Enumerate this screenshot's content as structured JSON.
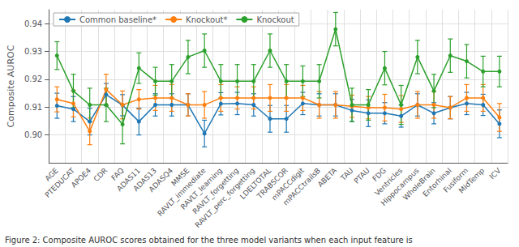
{
  "chart_data": {
    "type": "line",
    "categories": [
      "AGE",
      "PTEDUCAT",
      "APOE4",
      "CDR",
      "FAQ",
      "ADAS11",
      "ADAS13",
      "ADASQ4",
      "MMSE",
      "RAVLT_immediate",
      "RAVLT_learning",
      "RAVLT_forgetting",
      "RAVLT_perc_forgetting",
      "LDELTOTAL",
      "TRABSCOR",
      "mPACCdigit",
      "mPACCtrailsB",
      "ABETA",
      "TAU",
      "PTAU",
      "FDG",
      "Ventricles",
      "Hippocampus",
      "WholeBrain",
      "Entorhinal",
      "Fusiform",
      "MidTemp",
      "ICV"
    ],
    "series": [
      {
        "name": "Common baseline*",
        "color": "#1f77b4",
        "marker": "circle",
        "values": [
          0.9105,
          0.9093,
          0.9048,
          0.9145,
          0.9107,
          0.9048,
          0.9108,
          0.9108,
          0.9108,
          0.9005,
          0.9112,
          0.9113,
          0.9108,
          0.9058,
          0.9058,
          0.9113,
          0.9108,
          0.9108,
          0.9088,
          0.9078,
          0.9078,
          0.9068,
          0.9108,
          0.9078,
          0.9098,
          0.9113,
          0.9108,
          0.904
        ],
        "errors": [
          0.0045,
          0.0045,
          0.0048,
          0.004,
          0.0038,
          0.0048,
          0.004,
          0.004,
          0.004,
          0.0048,
          0.004,
          0.004,
          0.004,
          0.0048,
          0.0048,
          0.004,
          0.004,
          0.004,
          0.004,
          0.0048,
          0.0038,
          0.004,
          0.004,
          0.0038,
          0.004,
          0.004,
          0.0038,
          0.005
        ]
      },
      {
        "name": "Knockout*",
        "color": "#ff7f0e",
        "marker": "circle",
        "values": [
          0.9128,
          0.9113,
          0.9013,
          0.9163,
          0.9108,
          0.9128,
          0.9133,
          0.9133,
          0.9108,
          0.9108,
          0.9133,
          0.9133,
          0.9133,
          0.9133,
          0.9133,
          0.9133,
          0.9108,
          0.9108,
          0.9103,
          0.9098,
          0.9098,
          0.9093,
          0.9108,
          0.9108,
          0.9098,
          0.9133,
          0.9133,
          0.9063
        ],
        "errors": [
          0.0045,
          0.0048,
          0.0048,
          0.0055,
          0.005,
          0.0035,
          0.0045,
          0.0048,
          0.004,
          0.0048,
          0.0048,
          0.004,
          0.004,
          0.0048,
          0.0048,
          0.0045,
          0.0048,
          0.0048,
          0.004,
          0.004,
          0.0048,
          0.0048,
          0.0048,
          0.0048,
          0.004,
          0.0048,
          0.0048,
          0.005
        ]
      },
      {
        "name": "Knockout",
        "color": "#2ca02c",
        "marker": "circle",
        "values": [
          0.9285,
          0.9158,
          0.9108,
          0.9108,
          0.9038,
          0.924,
          0.9193,
          0.9193,
          0.928,
          0.9303,
          0.9193,
          0.9193,
          0.9193,
          0.9303,
          0.9193,
          0.9193,
          0.9193,
          0.938,
          0.9108,
          0.9108,
          0.924,
          0.9108,
          0.928,
          0.9158,
          0.9285,
          0.9265,
          0.9228,
          0.9228
        ],
        "errors": [
          0.005,
          0.006,
          0.006,
          0.006,
          0.007,
          0.0055,
          0.005,
          0.006,
          0.006,
          0.006,
          0.006,
          0.006,
          0.006,
          0.006,
          0.006,
          0.0055,
          0.006,
          0.006,
          0.006,
          0.0055,
          0.006,
          0.007,
          0.006,
          0.006,
          0.006,
          0.006,
          0.0055,
          0.0055
        ]
      }
    ],
    "ylabel": "Composite AUROC",
    "ylim": [
      0.89,
      0.945
    ],
    "yticks": [
      {
        "value": 0.9,
        "label": "0.90"
      },
      {
        "value": 0.91,
        "label": "0.91"
      },
      {
        "value": 0.92,
        "label": "0.92"
      },
      {
        "value": 0.93,
        "label": "0.93"
      },
      {
        "value": 0.94,
        "label": "0.94"
      }
    ],
    "grid": true,
    "legend": "upper left",
    "caption": "Figure 2: Composite AUROC scores obtained for the three model variants when each input feature is"
  }
}
